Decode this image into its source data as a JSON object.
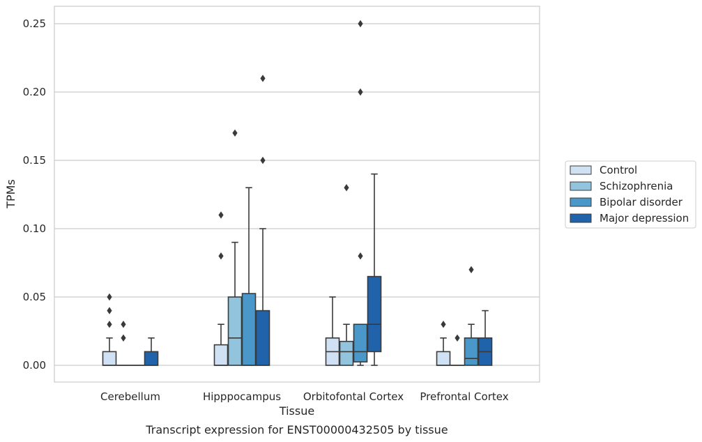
{
  "caption": "Transcript expression for ENST00000432505 by tissue",
  "chart_data": {
    "type": "box",
    "xlabel": "Tissue",
    "ylabel": "TPMs",
    "ylim": [
      -0.012,
      0.263
    ],
    "yticks": [
      0.0,
      0.05,
      0.1,
      0.15,
      0.2,
      0.25
    ],
    "ytick_labels": [
      "0.00",
      "0.05",
      "0.10",
      "0.15",
      "0.20",
      "0.25"
    ],
    "grid": true,
    "legend_position": "right",
    "categories": [
      "Cerebellum",
      "Hipppocampus",
      "Orbitofontal Cortex",
      "Prefrontal Cortex"
    ],
    "series": [
      {
        "name": "Control",
        "color": "#cfe1f2",
        "boxes": [
          {
            "q1": 0.0,
            "median": 0.0,
            "q3": 0.01,
            "whisker_low": 0.0,
            "whisker_high": 0.02,
            "outliers": [
              0.03,
              0.04,
              0.05
            ]
          },
          {
            "q1": 0.0,
            "median": 0.0,
            "q3": 0.015,
            "whisker_low": 0.0,
            "whisker_high": 0.03,
            "outliers": [
              0.08,
              0.11
            ]
          },
          {
            "q1": 0.0,
            "median": 0.01,
            "q3": 0.02,
            "whisker_low": 0.0,
            "whisker_high": 0.05,
            "outliers": []
          },
          {
            "q1": 0.0,
            "median": 0.0,
            "q3": 0.01,
            "whisker_low": 0.0,
            "whisker_high": 0.02,
            "outliers": [
              0.03
            ]
          }
        ]
      },
      {
        "name": "Schizophrenia",
        "color": "#93c4de",
        "boxes": [
          {
            "q1": 0.0,
            "median": 0.0,
            "q3": 0.0,
            "whisker_low": 0.0,
            "whisker_high": 0.0,
            "outliers": [
              0.02,
              0.03
            ]
          },
          {
            "q1": 0.0,
            "median": 0.02,
            "q3": 0.05,
            "whisker_low": 0.0,
            "whisker_high": 0.09,
            "outliers": [
              0.17
            ]
          },
          {
            "q1": 0.0,
            "median": 0.01,
            "q3": 0.0175,
            "whisker_low": 0.0,
            "whisker_high": 0.03,
            "outliers": [
              0.13
            ]
          },
          {
            "q1": 0.0,
            "median": 0.0,
            "q3": 0.0,
            "whisker_low": 0.0,
            "whisker_high": 0.0,
            "outliers": [
              0.02
            ]
          }
        ]
      },
      {
        "name": "Bipolar disorder",
        "color": "#4a98c9",
        "boxes": [
          {
            "q1": 0.0,
            "median": 0.0,
            "q3": 0.0,
            "whisker_low": 0.0,
            "whisker_high": 0.0,
            "outliers": []
          },
          {
            "q1": 0.0,
            "median": 0.0,
            "q3": 0.0525,
            "whisker_low": 0.0,
            "whisker_high": 0.13,
            "outliers": []
          },
          {
            "q1": 0.0025,
            "median": 0.01,
            "q3": 0.03,
            "whisker_low": 0.0,
            "whisker_high": 0.03,
            "outliers": [
              0.08,
              0.2,
              0.25
            ]
          },
          {
            "q1": 0.0,
            "median": 0.005,
            "q3": 0.02,
            "whisker_low": 0.0,
            "whisker_high": 0.03,
            "outliers": [
              0.07
            ]
          }
        ]
      },
      {
        "name": "Major depression",
        "color": "#2163aa",
        "boxes": [
          {
            "q1": 0.0,
            "median": 0.0,
            "q3": 0.01,
            "whisker_low": 0.0,
            "whisker_high": 0.02,
            "outliers": []
          },
          {
            "q1": 0.0,
            "median": 0.0,
            "q3": 0.04,
            "whisker_low": 0.0,
            "whisker_high": 0.1,
            "outliers": [
              0.15,
              0.21
            ]
          },
          {
            "q1": 0.01,
            "median": 0.03,
            "q3": 0.065,
            "whisker_low": 0.0,
            "whisker_high": 0.14,
            "outliers": []
          },
          {
            "q1": 0.0,
            "median": 0.01,
            "q3": 0.02,
            "whisker_low": 0.0,
            "whisker_high": 0.04,
            "outliers": []
          }
        ]
      }
    ]
  }
}
